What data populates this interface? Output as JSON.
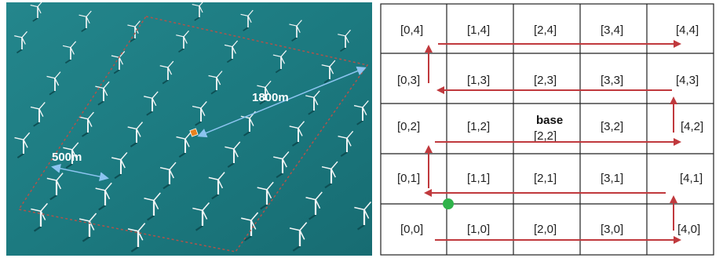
{
  "photo": {
    "distance_label_large": "1800m",
    "distance_label_small": "500m",
    "colors": {
      "sea": "#1f7f86",
      "boundary": "#b0534a",
      "measure_line": "#7fb8e8",
      "marker": "#e8821e"
    }
  },
  "grid": {
    "columns": 5,
    "rows": 5,
    "row_labels": [
      [
        "[0,4]",
        "[1,4]",
        "[2,4]",
        "[3,4]",
        "[4,4]"
      ],
      [
        "[0,3]",
        "[1,3]",
        "[2,3]",
        "[3,3]",
        "[4,3]"
      ],
      [
        "[0,2]",
        "[1,2]",
        "[2,2]",
        "[3,2]",
        "[4,2]"
      ],
      [
        "[0,1]",
        "[1,1]",
        "[2,1]",
        "[3,1]",
        "[4,1]"
      ],
      [
        "[0,0]",
        "[1,0]",
        "[2,0]",
        "[3,0]",
        "[4,0]"
      ]
    ],
    "base_label": "base",
    "colors": {
      "line": "#222222",
      "path_arrow": "#c0393d",
      "start_marker": "#2fb34a"
    }
  }
}
